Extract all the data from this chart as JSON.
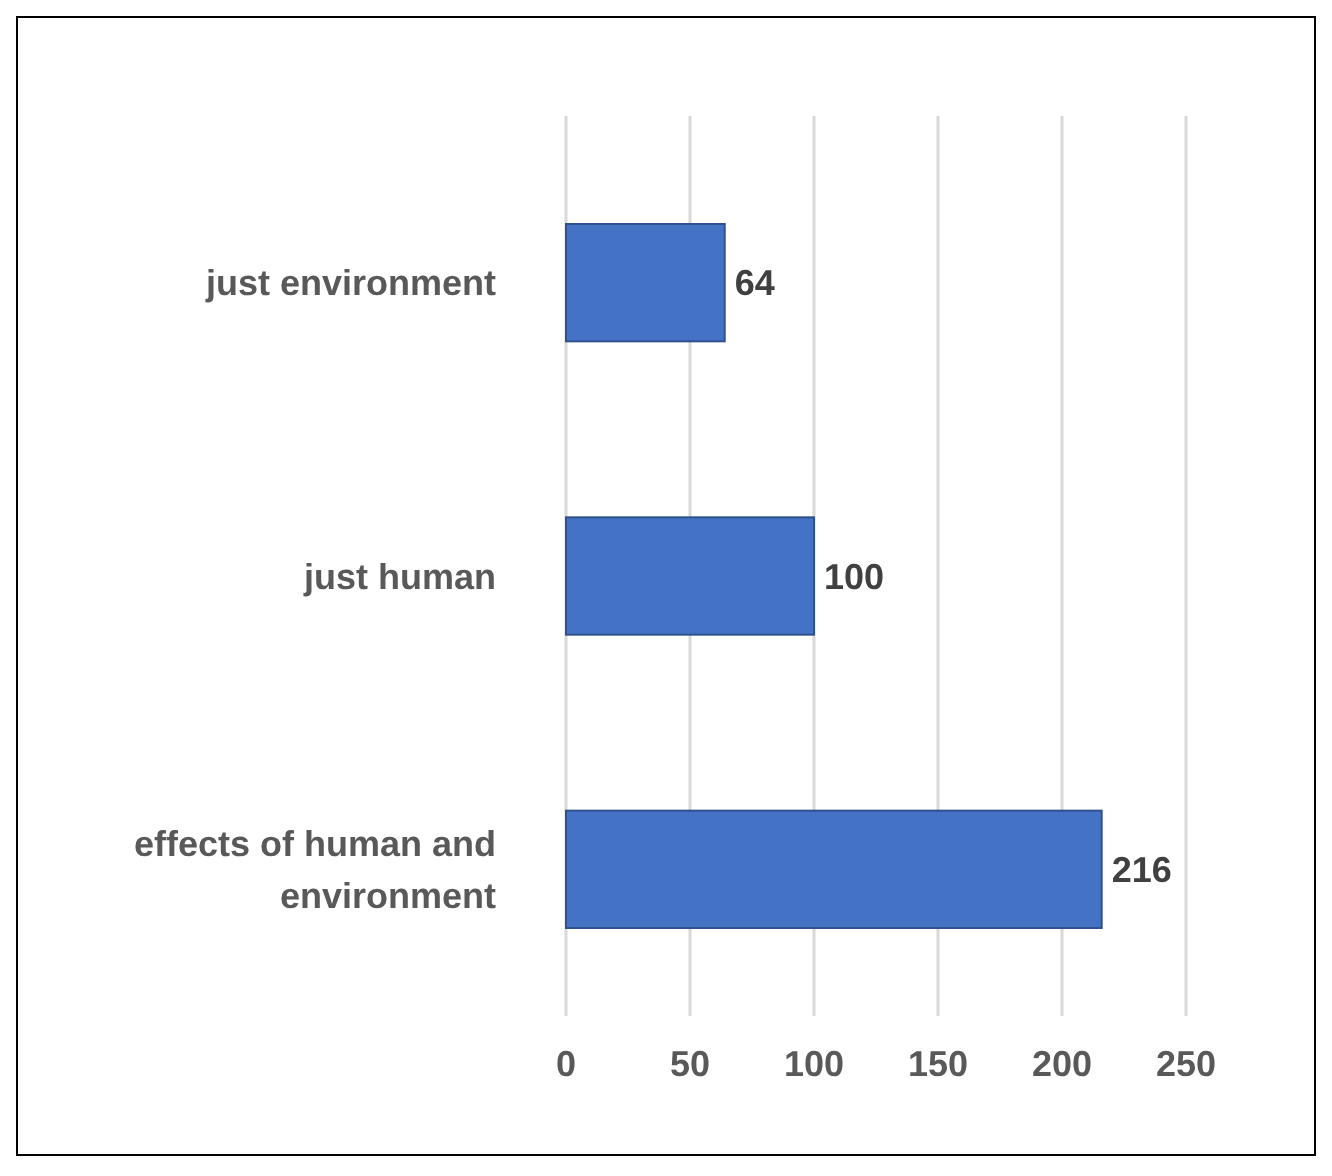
{
  "chart_data": {
    "type": "bar",
    "orientation": "horizontal",
    "categories": [
      "just environment",
      "just human",
      "effects of human and environment"
    ],
    "values": [
      64,
      100,
      216
    ],
    "color": "#4472c4",
    "xlim": [
      0,
      250
    ],
    "xticks": [
      0,
      50,
      100,
      150,
      200,
      250
    ],
    "grid": "x",
    "data_labels": true
  }
}
